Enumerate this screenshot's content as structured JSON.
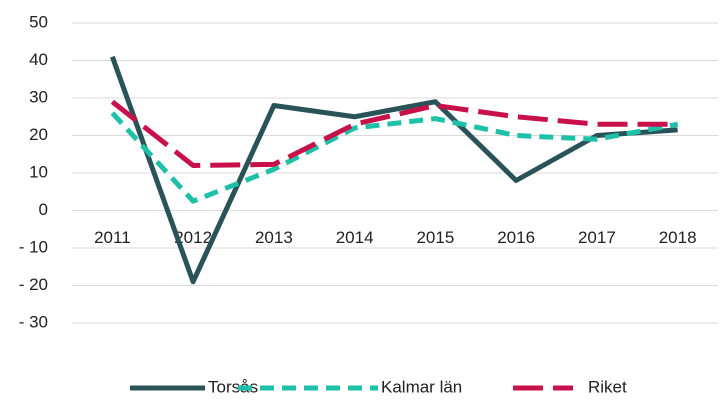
{
  "chart_data": {
    "type": "line",
    "categories": [
      "2011",
      "2012",
      "2013",
      "2014",
      "2015",
      "2016",
      "2017",
      "2018"
    ],
    "series": [
      {
        "name": "Torsås",
        "color": "#2a5358",
        "line_style": "solid",
        "values": [
          41,
          -19,
          28,
          25,
          29,
          8,
          20,
          21.5
        ]
      },
      {
        "name": "Kalmar län",
        "color": "#1fc0a8",
        "line_style": "dashed",
        "values": [
          26,
          2.5,
          11,
          22,
          24.5,
          20,
          19,
          23
        ]
      },
      {
        "name": "Riket",
        "color": "#c8114a",
        "line_style": "long-dashed",
        "values": [
          29,
          12,
          12.3,
          23,
          28,
          25,
          23,
          23
        ]
      }
    ],
    "ylim": [
      -30,
      50
    ],
    "yticks": [
      50,
      40,
      30,
      20,
      10,
      0,
      {
        "value": -10,
        "label": "- 10"
      },
      {
        "value": -20,
        "label": "- 20"
      },
      {
        "value": -30,
        "label": "- 30"
      }
    ],
    "grid": true,
    "legend": "bottom"
  }
}
